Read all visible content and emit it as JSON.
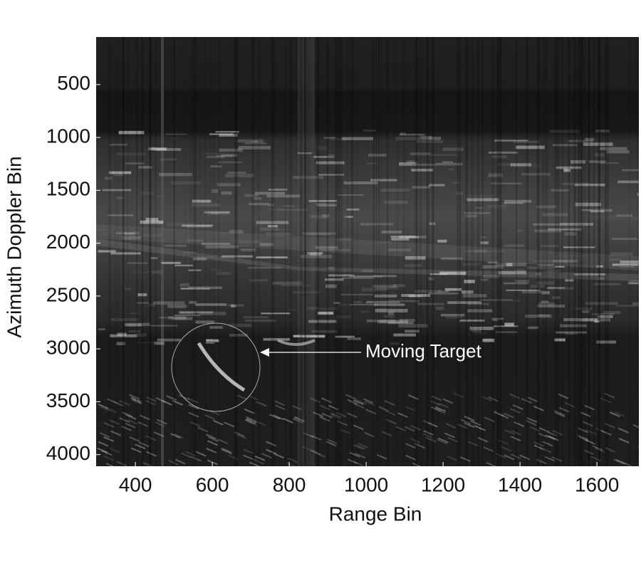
{
  "chart_data": {
    "type": "image",
    "x_label": "Range Bin",
    "y_label": "Azimuth Doppler Bin",
    "xlim": [
      298,
      1709
    ],
    "ylim": [
      50,
      4110
    ],
    "y_inverted": true,
    "xticks": [
      400,
      600,
      800,
      1000,
      1200,
      1400,
      1600
    ],
    "yticks": [
      500,
      1000,
      1500,
      2000,
      2500,
      3000,
      3500,
      4000
    ],
    "annotation": "Moving Target"
  }
}
